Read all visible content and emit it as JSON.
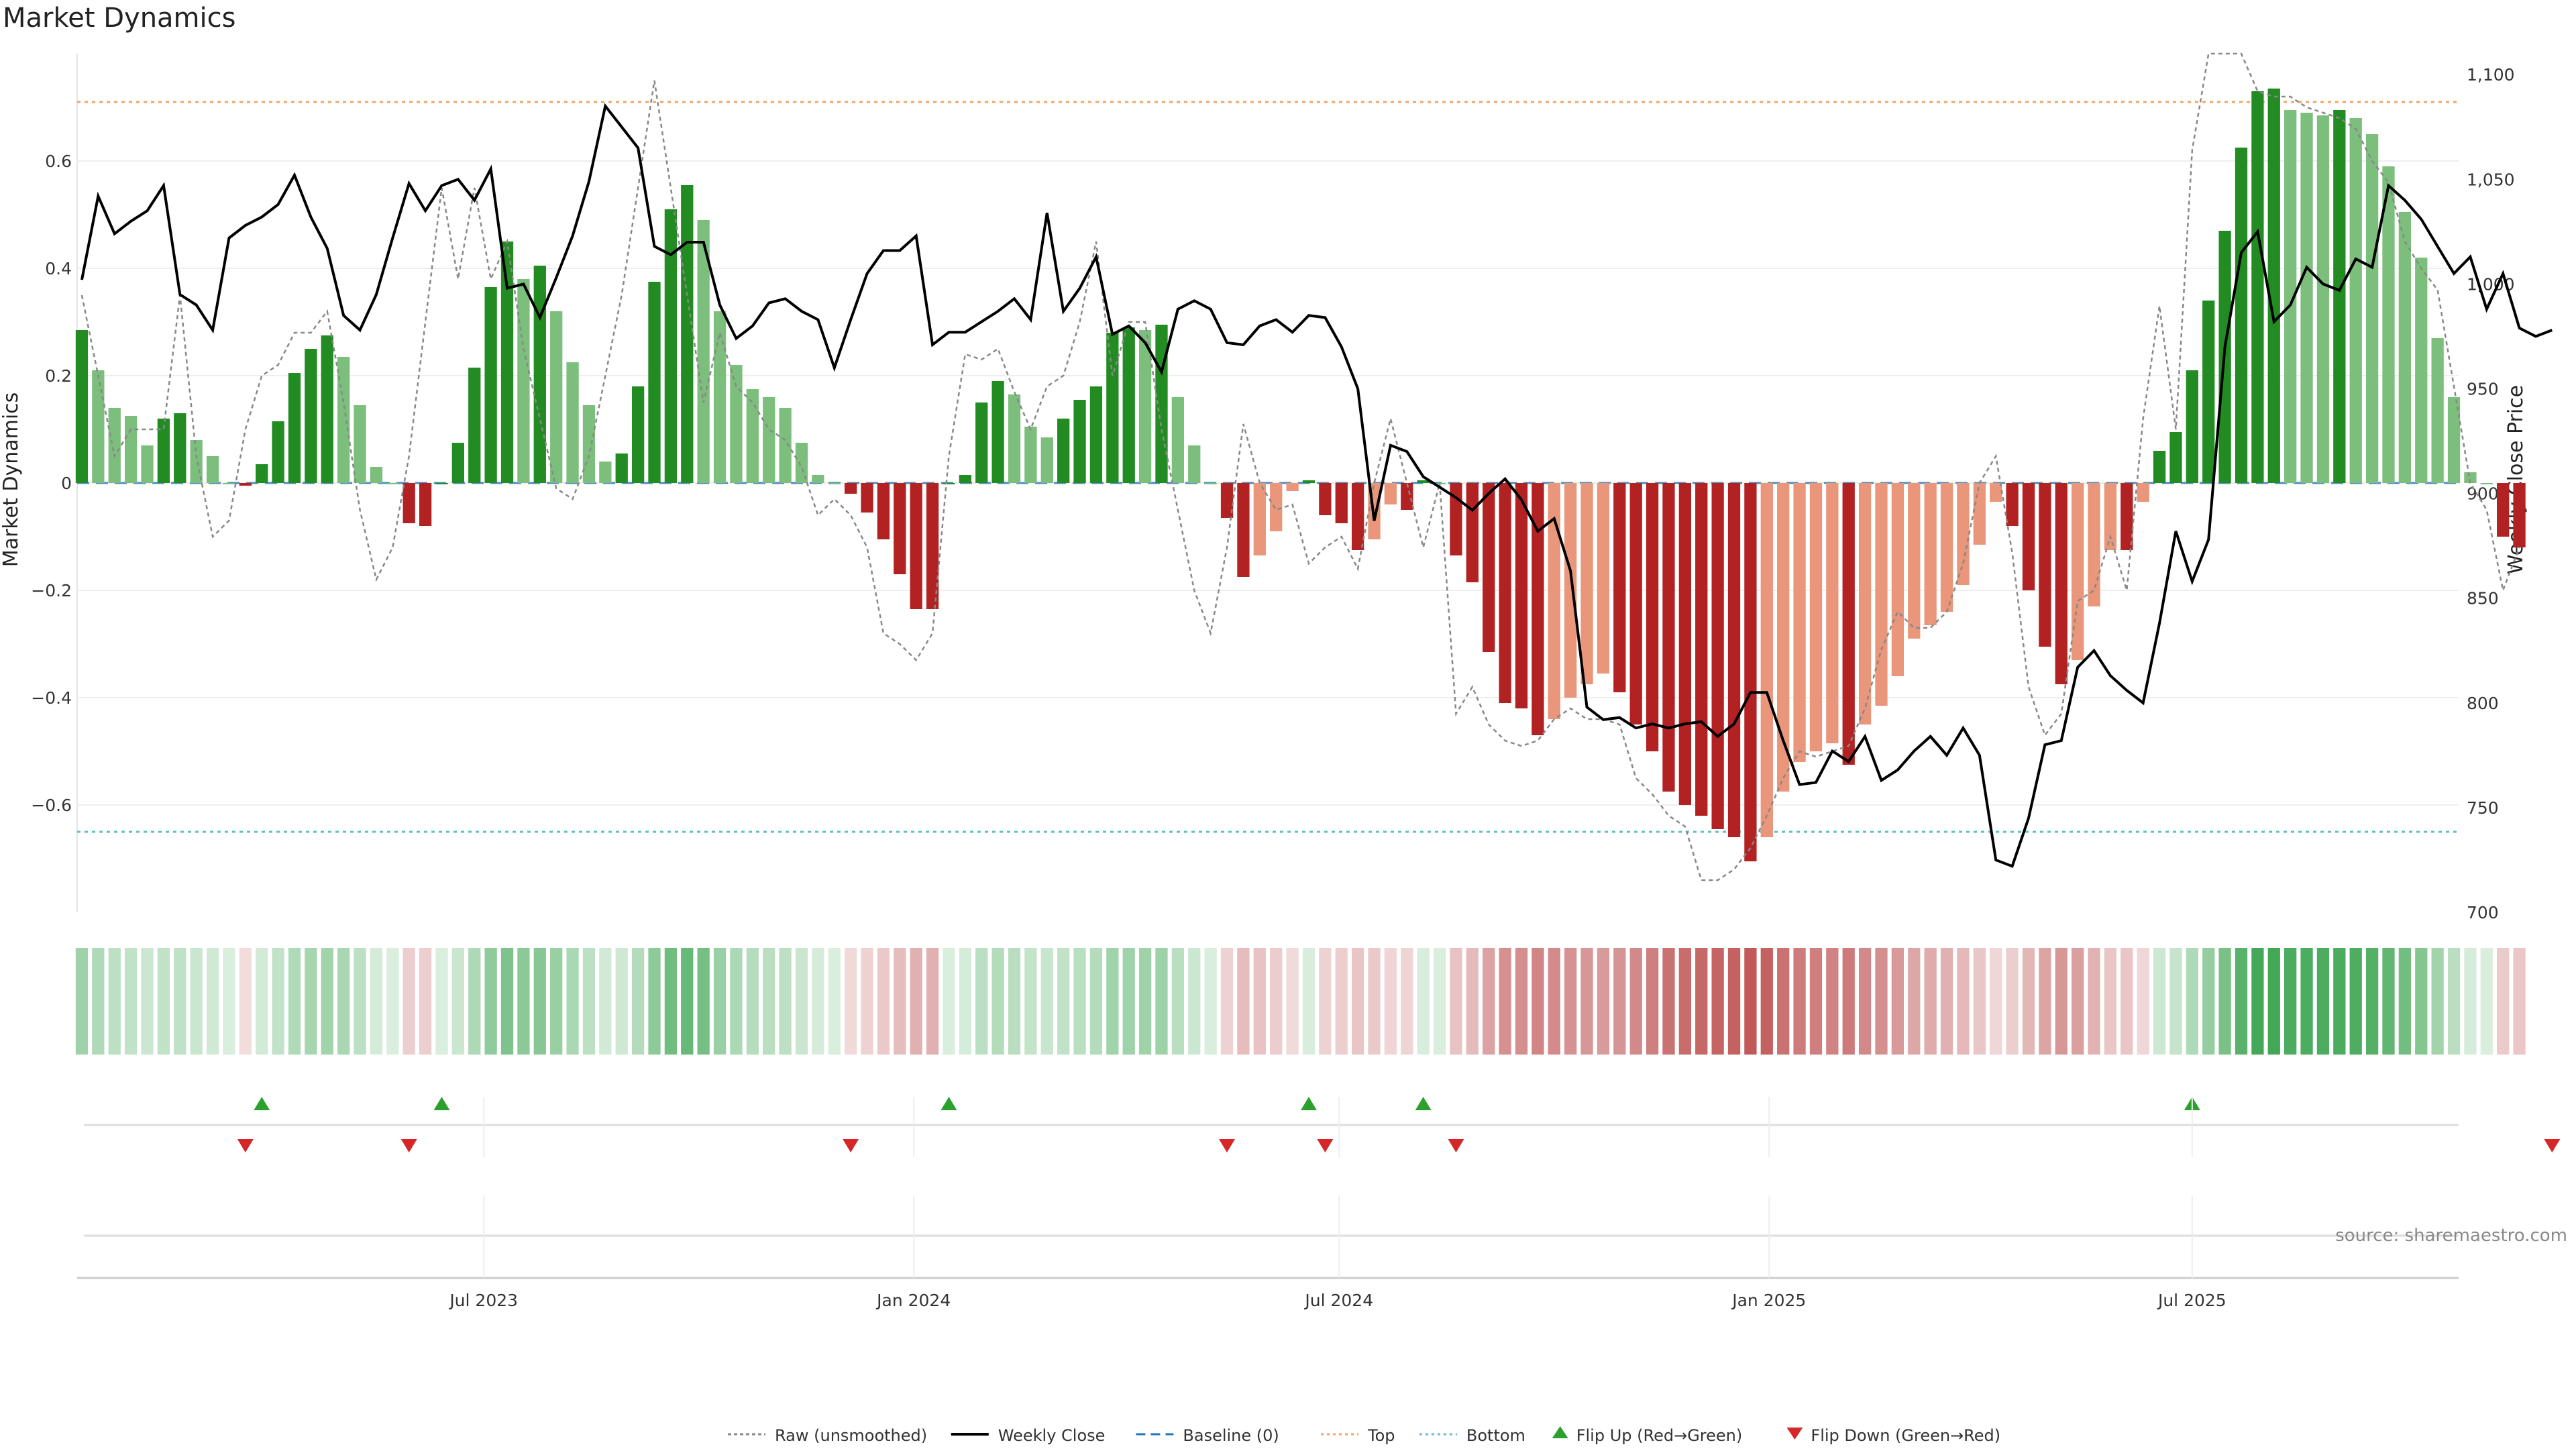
{
  "chart_data": {
    "type": "bar",
    "title": "Market Dynamics",
    "ylabel": "Market Dynamics",
    "y2label": "Weekly Close Price",
    "source": "source: sharemaestro.com",
    "ylim": [
      -0.8,
      0.8
    ],
    "y2lim": [
      700,
      1110
    ],
    "yticks": [
      -0.6,
      -0.4,
      -0.2,
      0,
      0.2,
      0.4,
      0.6
    ],
    "ytick_labels": [
      "−0.6",
      "−0.4",
      "−0.2",
      "0",
      "0.2",
      "0.4",
      "0.6"
    ],
    "y2ticks": [
      700,
      750,
      800,
      850,
      900,
      950,
      1000,
      1050,
      1100
    ],
    "y2tick_labels": [
      "700",
      "750",
      "800",
      "850",
      "900",
      "950",
      "1,000",
      "1,050",
      "1,100"
    ],
    "xlim": [
      "2023-01-08",
      "2025-10-23"
    ],
    "xticks": [
      {
        "date": "2023-07-01",
        "label": "Jul 2023"
      },
      {
        "date": "2024-01-01",
        "label": "Jan 2024"
      },
      {
        "date": "2024-07-01",
        "label": "Jul 2024"
      },
      {
        "date": "2025-01-01",
        "label": "Jan 2025"
      },
      {
        "date": "2025-07-01",
        "label": "Jul 2025"
      }
    ],
    "top_level": 0.71,
    "bottom_level": -0.65,
    "baseline": 0,
    "start_date": "2023-01-10",
    "week_step_days": 7,
    "values": [
      0.285,
      0.21,
      0.14,
      0.125,
      0.07,
      0.12,
      0.13,
      0.08,
      0.05,
      0,
      -0.005,
      0.035,
      0.115,
      0.205,
      0.25,
      0.275,
      0.235,
      0.145,
      0.03,
      0,
      -0.075,
      -0.08,
      0,
      0.075,
      0.215,
      0.365,
      0.45,
      0.38,
      0.405,
      0.32,
      0.225,
      0.145,
      0.04,
      0.055,
      0.18,
      0.375,
      0.51,
      0.555,
      0.49,
      0.32,
      0.22,
      0.175,
      0.16,
      0.14,
      0.075,
      0.015,
      0,
      -0.02,
      -0.055,
      -0.105,
      -0.17,
      -0.235,
      -0.235,
      0,
      0.015,
      0.15,
      0.19,
      0.165,
      0.105,
      0.085,
      0.12,
      0.155,
      0.18,
      0.28,
      0.29,
      0.285,
      0.295,
      0.16,
      0.07,
      0,
      -0.065,
      -0.175,
      -0.135,
      -0.09,
      -0.015,
      0.005,
      -0.06,
      -0.075,
      -0.125,
      -0.105,
      -0.04,
      -0.05,
      0.005,
      0,
      -0.135,
      -0.185,
      -0.315,
      -0.41,
      -0.42,
      -0.47,
      -0.44,
      -0.4,
      -0.375,
      -0.355,
      -0.39,
      -0.45,
      -0.5,
      -0.575,
      -0.6,
      -0.62,
      -0.645,
      -0.66,
      -0.705,
      -0.66,
      -0.575,
      -0.52,
      -0.5,
      -0.485,
      -0.525,
      -0.45,
      -0.415,
      -0.36,
      -0.29,
      -0.265,
      -0.24,
      -0.19,
      -0.115,
      -0.035,
      -0.08,
      -0.2,
      -0.305,
      -0.375,
      -0.33,
      -0.23,
      -0.125,
      -0.125,
      -0.035,
      0.06,
      0.095,
      0.21,
      0.34,
      0.47,
      0.625,
      0.73,
      0.735,
      0.695,
      0.69,
      0.685,
      0.695,
      0.68,
      0.65,
      0.59,
      0.505,
      0.42,
      0.27,
      0.16,
      0.02,
      0,
      -0.1,
      -0.12
    ],
    "bar_colors": {
      "up_strong": "#228b22",
      "up_weak": "#7cbf7c",
      "down_strong": "#b22222",
      "down_weak": "#e9967a"
    },
    "heat_colors": {
      "positive": "#2e9e44",
      "negative": "#b84040"
    },
    "series": [
      {
        "name": "Raw (unsmoothed)",
        "color": "#888888",
        "y_axis": "left",
        "values": [
          0.35,
          0.2,
          0.05,
          0.1,
          0.1,
          0.1,
          0.35,
          0.05,
          -0.1,
          -0.07,
          0.1,
          0.2,
          0.22,
          0.28,
          0.28,
          0.32,
          0.15,
          -0.05,
          -0.18,
          -0.12,
          0.05,
          0.3,
          0.55,
          0.38,
          0.55,
          0.38,
          0.45,
          0.25,
          0.12,
          -0.01,
          -0.03,
          0.05,
          0.2,
          0.35,
          0.55,
          0.75,
          0.55,
          0.35,
          0.15,
          0.28,
          0.18,
          0.15,
          0.1,
          0.08,
          0.03,
          -0.06,
          -0.03,
          -0.06,
          -0.12,
          -0.28,
          -0.3,
          -0.33,
          -0.28,
          0.05,
          0.24,
          0.23,
          0.25,
          0.17,
          0.1,
          0.18,
          0.2,
          0.3,
          0.45,
          0.2,
          0.3,
          0.3,
          0.1,
          -0.05,
          -0.2,
          -0.28,
          -0.12,
          0.11,
          0.0,
          -0.05,
          -0.04,
          -0.15,
          -0.12,
          -0.1,
          -0.16,
          0.0,
          0.12,
          0.0,
          -0.12,
          0.0,
          -0.43,
          -0.38,
          -0.45,
          -0.48,
          -0.49,
          -0.48,
          -0.44,
          -0.42,
          -0.44,
          -0.44,
          -0.45,
          -0.55,
          -0.58,
          -0.62,
          -0.64,
          -0.74,
          -0.74,
          -0.72,
          -0.68,
          -0.62,
          -0.55,
          -0.5,
          -0.51,
          -0.5,
          -0.49,
          -0.42,
          -0.31,
          -0.24,
          -0.27,
          -0.27,
          -0.24,
          -0.15,
          0.0,
          0.05,
          -0.13,
          -0.38,
          -0.47,
          -0.43,
          -0.22,
          -0.2,
          -0.1,
          -0.2,
          0.12,
          0.33,
          0.1,
          0.62,
          0.8,
          0.8,
          0.8,
          0.73,
          0.72,
          0.72,
          0.7,
          0.69,
          0.68,
          0.66,
          0.6,
          0.56,
          0.45,
          0.4,
          0.36,
          0.18,
          0.0,
          -0.05,
          -0.2,
          -0.12
        ]
      },
      {
        "name": "Weekly Close",
        "color": "#000000",
        "y_axis": "right",
        "values": [
          1002,
          1042,
          1024,
          1030,
          1035,
          1047,
          995,
          990,
          978,
          1022,
          1028,
          1032,
          1038,
          1052,
          1032,
          1017,
          985,
          978,
          995,
          1022,
          1048,
          1035,
          1047,
          1050,
          1040,
          1055,
          998,
          1000,
          984,
          1003,
          1023,
          1049,
          1085,
          1075,
          1065,
          1018,
          1014,
          1020,
          1020,
          990,
          974,
          980,
          991,
          993,
          987,
          983,
          960,
          983,
          1005,
          1016,
          1016,
          1023,
          971,
          977,
          977,
          982,
          987,
          993,
          983,
          1034,
          987,
          998,
          1013,
          976,
          980,
          972,
          958,
          988,
          992,
          988,
          972,
          971,
          980,
          983,
          977,
          985,
          984,
          970,
          950,
          887,
          923,
          920,
          908,
          903,
          898,
          892,
          900,
          907,
          897,
          882,
          888,
          863,
          798,
          792,
          793,
          788,
          790,
          788,
          790,
          791,
          784,
          790,
          805,
          805,
          782,
          761,
          762,
          777,
          772,
          784,
          763,
          768,
          777,
          784,
          775,
          788,
          775,
          725,
          722,
          745,
          780,
          782,
          817,
          825,
          813,
          806,
          800,
          838,
          882,
          858,
          878,
          970,
          1015,
          1025,
          982,
          990,
          1008,
          1000,
          997,
          1012,
          1008,
          1047,
          1040,
          1031,
          1018,
          1005,
          1013,
          988,
          1005,
          979,
          975,
          978
        ]
      },
      {
        "name": "Baseline (0)",
        "color": "#1f77b4"
      },
      {
        "name": "Top",
        "color": "#f4a460"
      },
      {
        "name": "Bottom",
        "color": "#5bc0c8"
      },
      {
        "name": "Flip Up (Red→Green)",
        "color": "#2ca02c",
        "marker": "triangle-up",
        "indices": [
          11,
          22,
          53,
          75,
          82,
          129
        ]
      },
      {
        "name": "Flip Down (Green→Red)",
        "color": "#d62728",
        "marker": "triangle-down",
        "indices": [
          10,
          20,
          47,
          70,
          76,
          84,
          151
        ]
      }
    ]
  }
}
